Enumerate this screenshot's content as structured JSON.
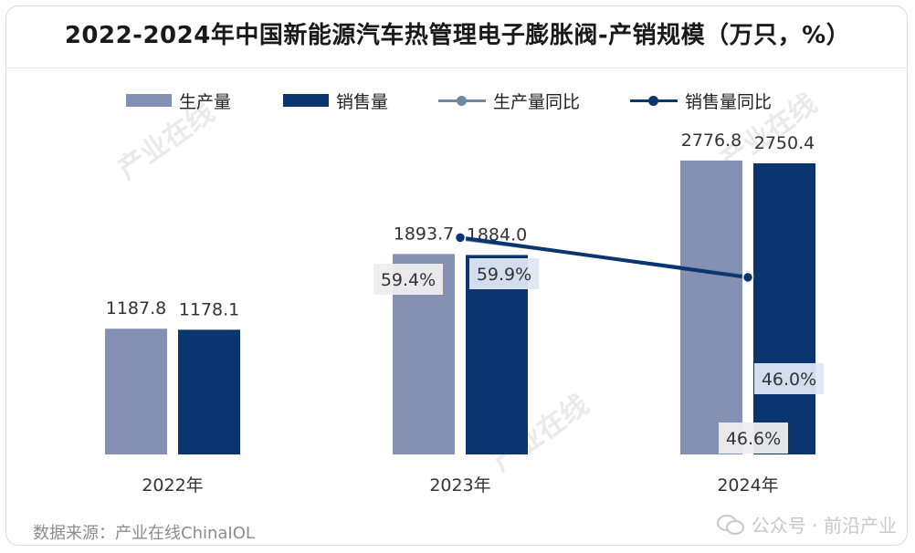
{
  "title": "2022-2024年中国新能源汽车热管理电子膨胀阀-产销规模（万只，%）",
  "legend": {
    "production": "生产量",
    "sales": "销售量",
    "production_yoy": "生产量同比",
    "sales_yoy": "销售量同比"
  },
  "colors": {
    "production": "#8591b3",
    "sales": "#0b356e",
    "production_yoy": "#6f88a4",
    "sales_yoy": "#0b356e",
    "label_box_sales": "#dde7f3",
    "label_box_prod": "#eeeeee"
  },
  "chart_data": {
    "type": "bar",
    "title": "2022-2024年中国新能源汽车热管理电子膨胀阀-产销规模（万只，%）",
    "categories": [
      "2022年",
      "2023年",
      "2024年"
    ],
    "series": [
      {
        "name": "生产量",
        "type": "bar",
        "values": [
          1187.8,
          1893.7,
          2776.8
        ]
      },
      {
        "name": "销售量",
        "type": "bar",
        "values": [
          1178.1,
          1884.0,
          2750.4
        ]
      },
      {
        "name": "生产量同比",
        "type": "line",
        "values": [
          null,
          59.4,
          46.6
        ]
      },
      {
        "name": "销售量同比",
        "type": "line",
        "values": [
          null,
          59.9,
          46.0
        ]
      }
    ],
    "bar_labels": [
      [
        "1187.8",
        "1893.7",
        "2776.8"
      ],
      [
        "1178.1",
        "1884.0",
        "2750.4"
      ]
    ],
    "line_labels": [
      [
        null,
        "59.4%",
        "46.6%"
      ],
      [
        null,
        "59.9%",
        "46.0%"
      ]
    ],
    "ylim_bar": [
      0,
      3000
    ],
    "ylim_line": [
      0,
      100
    ],
    "legend_position": "top",
    "grid": false
  },
  "source": "数据来源：产业在线ChinaIOL",
  "wechat_caption": "公众号 · 前沿产业",
  "watermark": "产业在线"
}
